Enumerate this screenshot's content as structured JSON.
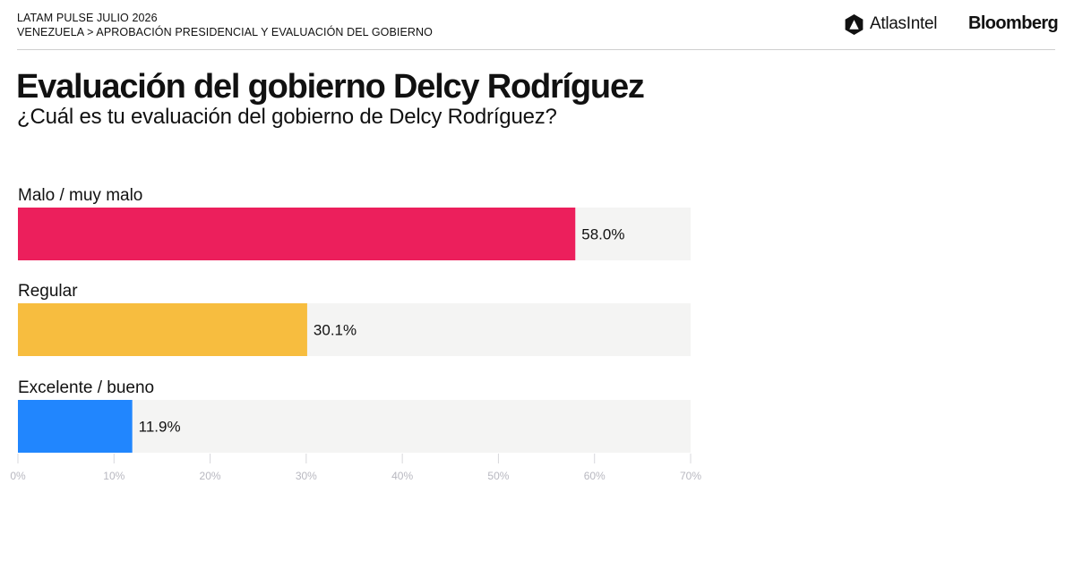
{
  "header": {
    "survey": "LATAM PULSE JULIO 2026",
    "breadcrumb": "VENEZUELA > APROBACIÓN PRESIDENCIAL Y EVALUACIÓN DEL GOBIERNO",
    "logo_atlas": "AtlasIntel",
    "logo_bloomberg": "Bloomberg"
  },
  "colors": {
    "track": "#f4f4f3",
    "axis": "#d8d8dc"
  },
  "chart_data": {
    "type": "bar",
    "orientation": "horizontal",
    "title": "Evaluación del gobierno Delcy Rodríguez",
    "subtitle": "¿Cuál es tu evaluación del gobierno de Delcy Rodríguez?",
    "categories": [
      "Malo / muy malo",
      "Regular",
      "Excelente / bueno"
    ],
    "values": [
      58.0,
      30.1,
      11.9
    ],
    "value_labels": [
      "58.0%",
      "30.1%",
      "11.9%"
    ],
    "bar_colors": [
      "#ec1f5c",
      "#f7bd3f",
      "#2186fe"
    ],
    "xlim": [
      0,
      70
    ],
    "x_ticks": [
      0,
      10,
      20,
      30,
      40,
      50,
      60,
      70
    ],
    "x_tick_labels": [
      "0%",
      "10%",
      "20%",
      "30%",
      "40%",
      "50%",
      "60%",
      "70%"
    ],
    "grid": false,
    "legend": "none"
  }
}
